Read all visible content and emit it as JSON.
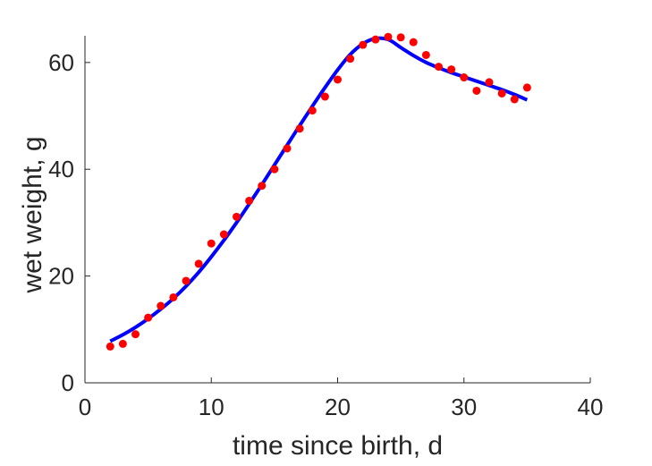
{
  "chart_data": {
    "type": "scatter",
    "xlabel": "time since birth, d",
    "ylabel": "wet weight, g",
    "xlim": [
      0,
      40
    ],
    "ylim": [
      0,
      65
    ],
    "xticks": [
      0,
      10,
      20,
      30,
      40
    ],
    "yticks": [
      0,
      20,
      40,
      60
    ],
    "grid": false,
    "colors": {
      "points": "#ff0000",
      "line": "#0000ff",
      "axis": "#262626"
    },
    "series": [
      {
        "kind": "points",
        "x": [
          2,
          3,
          4,
          5,
          6,
          7,
          8,
          9,
          10,
          11,
          12,
          13,
          14,
          15,
          16,
          17,
          18,
          19,
          20,
          21,
          22,
          23,
          24,
          25,
          26,
          27,
          28,
          29,
          30,
          31,
          32,
          33,
          34,
          35
        ],
        "y": [
          6.8,
          7.3,
          9.1,
          12.2,
          14.4,
          16.0,
          19.1,
          22.3,
          26.1,
          27.8,
          31.1,
          34.1,
          36.9,
          40.0,
          43.9,
          47.6,
          51.0,
          53.6,
          56.8,
          60.7,
          63.3,
          64.3,
          64.8,
          64.7,
          63.8,
          61.4,
          59.2,
          58.7,
          57.2,
          54.7,
          56.3,
          54.2,
          53.1,
          55.3
        ]
      },
      {
        "kind": "line",
        "x": [
          2,
          3,
          4,
          5,
          6,
          7,
          8,
          9,
          10,
          11,
          12,
          13,
          14,
          15,
          16,
          17,
          18,
          19,
          20,
          21,
          22,
          23,
          24,
          25,
          26,
          27,
          28,
          29,
          30,
          31,
          32,
          33,
          34,
          35
        ],
        "y": [
          7.8,
          9.0,
          10.4,
          12.0,
          13.8,
          15.8,
          18.1,
          20.7,
          23.6,
          26.7,
          30.0,
          33.5,
          37.1,
          40.8,
          44.5,
          48.2,
          51.8,
          55.3,
          58.6,
          61.5,
          63.5,
          64.5,
          64.3,
          62.8,
          61.3,
          60.0,
          59.0,
          58.1,
          57.3,
          56.5,
          55.7,
          54.9,
          54.0,
          53.0
        ]
      }
    ]
  }
}
